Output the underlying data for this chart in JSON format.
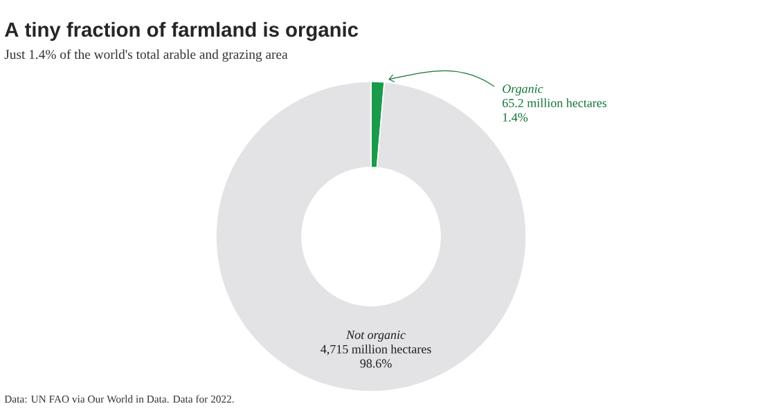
{
  "chart_data": {
    "type": "donut",
    "title": "A tiny fraction of farmland is organic",
    "subtitle": "Just 1.4% of the world's total arable and grazing area",
    "categories": [
      "Organic",
      "Not organic"
    ],
    "values": [
      65.2,
      4715
    ],
    "colors": [
      "#1a9b4b",
      "#e3e2e5"
    ],
    "value_labels": [
      "65.2 million hectares",
      "4,715 million hectares"
    ],
    "annotations": [
      "1.4%",
      "98.6%",
      "Data: UN FAO via Our World in Data. Data for 2022."
    ]
  }
}
